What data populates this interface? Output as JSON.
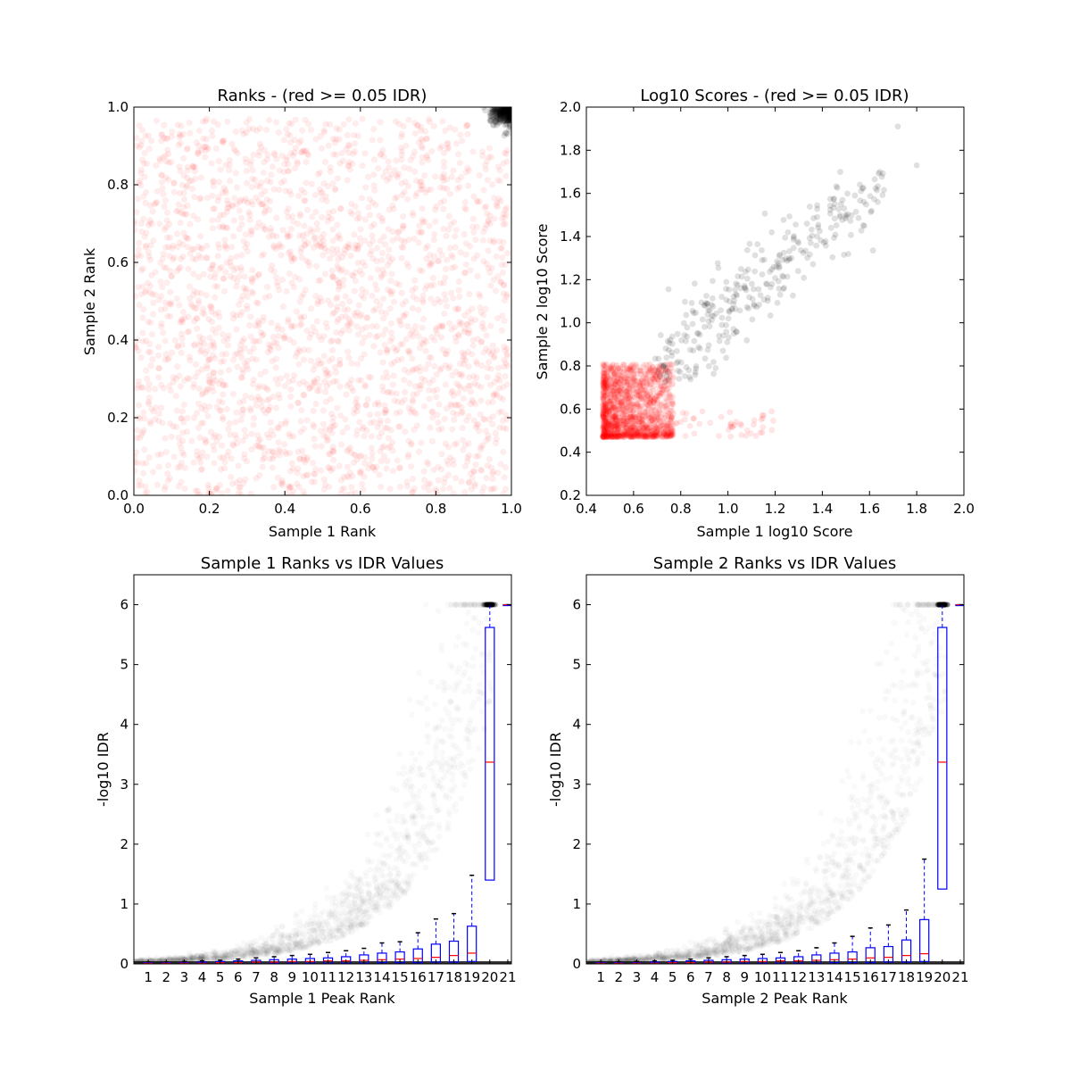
{
  "chart_data": [
    {
      "type": "scatter",
      "title": "Ranks - (red >= 0.05 IDR)",
      "xlabel": "Sample 1 Rank",
      "ylabel": "Sample 2 Rank",
      "xlim": [
        0.0,
        1.0
      ],
      "ylim": [
        0.0,
        1.0
      ],
      "xticks": [
        "0.0",
        "0.2",
        "0.4",
        "0.6",
        "0.8",
        "1.0"
      ],
      "yticks": [
        "0.0",
        "0.2",
        "0.4",
        "0.6",
        "0.8",
        "1.0"
      ],
      "colors": {
        "high_idr": "#ff0000",
        "low_idr": "#000000"
      },
      "series": [
        {
          "color": "#ff0000",
          "x_range": [
            0.0,
            0.99
          ],
          "y_range": [
            0.0,
            0.97
          ],
          "density": "uniform"
        },
        {
          "color": "#000000",
          "x_range": [
            0.86,
            1.0
          ],
          "y_range": [
            0.9,
            1.0
          ],
          "density": "clustered near (1.0, 1.0)"
        }
      ]
    },
    {
      "type": "scatter",
      "title": "Log10 Scores - (red >= 0.05 IDR)",
      "xlabel": "Sample 1 log10 Score",
      "ylabel": "Sample 2 log10 Score",
      "xlim": [
        0.4,
        2.0
      ],
      "ylim": [
        0.2,
        2.0
      ],
      "xticks": [
        "0.4",
        "0.6",
        "0.8",
        "1.0",
        "1.2",
        "1.4",
        "1.6",
        "1.8",
        "2.0"
      ],
      "yticks": [
        "0.2",
        "0.4",
        "0.6",
        "0.8",
        "1.0",
        "1.2",
        "1.4",
        "1.6",
        "1.8",
        "2.0"
      ],
      "series": [
        {
          "color": "#ff0000",
          "x_range": [
            0.47,
            0.8
          ],
          "y_range": [
            0.47,
            0.85
          ],
          "density": "dense cluster"
        },
        {
          "color": "#000000",
          "x_range": [
            0.68,
            1.72
          ],
          "y_range": [
            0.72,
            1.92
          ],
          "density": "diagonal spread"
        }
      ]
    },
    {
      "type": "box",
      "title": "Sample 1 Ranks vs IDR Values",
      "xlabel": "Sample 1 Peak Rank",
      "ylabel": "-log10 IDR",
      "ylim": [
        0,
        6.5
      ],
      "yticks": [
        "0",
        "1",
        "2",
        "3",
        "4",
        "5",
        "6"
      ],
      "categories": [
        "1",
        "2",
        "3",
        "4",
        "5",
        "6",
        "7",
        "8",
        "9",
        "10",
        "11",
        "12",
        "13",
        "14",
        "15",
        "16",
        "17",
        "18",
        "19",
        "20",
        "21"
      ],
      "boxes": [
        {
          "q1": 0.0,
          "median": 0.01,
          "q3": 0.02,
          "whisker_hi": 0.03
        },
        {
          "q1": 0.0,
          "median": 0.01,
          "q3": 0.02,
          "whisker_hi": 0.03
        },
        {
          "q1": 0.0,
          "median": 0.01,
          "q3": 0.02,
          "whisker_hi": 0.04
        },
        {
          "q1": 0.0,
          "median": 0.01,
          "q3": 0.03,
          "whisker_hi": 0.05
        },
        {
          "q1": 0.0,
          "median": 0.02,
          "q3": 0.04,
          "whisker_hi": 0.06
        },
        {
          "q1": 0.0,
          "median": 0.02,
          "q3": 0.05,
          "whisker_hi": 0.08
        },
        {
          "q1": 0.0,
          "median": 0.03,
          "q3": 0.06,
          "whisker_hi": 0.1
        },
        {
          "q1": 0.01,
          "median": 0.03,
          "q3": 0.07,
          "whisker_hi": 0.12
        },
        {
          "q1": 0.01,
          "median": 0.04,
          "q3": 0.08,
          "whisker_hi": 0.14
        },
        {
          "q1": 0.01,
          "median": 0.04,
          "q3": 0.09,
          "whisker_hi": 0.16
        },
        {
          "q1": 0.01,
          "median": 0.05,
          "q3": 0.1,
          "whisker_hi": 0.19
        },
        {
          "q1": 0.01,
          "median": 0.05,
          "q3": 0.12,
          "whisker_hi": 0.22
        },
        {
          "q1": 0.01,
          "median": 0.06,
          "q3": 0.15,
          "whisker_hi": 0.26
        },
        {
          "q1": 0.02,
          "median": 0.07,
          "q3": 0.18,
          "whisker_hi": 0.35
        },
        {
          "q1": 0.02,
          "median": 0.08,
          "q3": 0.2,
          "whisker_hi": 0.37
        },
        {
          "q1": 0.02,
          "median": 0.09,
          "q3": 0.25,
          "whisker_hi": 0.52
        },
        {
          "q1": 0.03,
          "median": 0.11,
          "q3": 0.33,
          "whisker_hi": 0.75
        },
        {
          "q1": 0.03,
          "median": 0.14,
          "q3": 0.38,
          "whisker_hi": 0.84
        },
        {
          "q1": 0.04,
          "median": 0.18,
          "q3": 0.63,
          "whisker_hi": 1.48
        },
        {
          "q1": 1.4,
          "median": 3.37,
          "q3": 5.62,
          "whisker_hi": 6.0
        },
        {
          "q1": 6.0,
          "median": 6.0,
          "q3": 6.0,
          "whisker_hi": 6.0
        }
      ]
    },
    {
      "type": "box",
      "title": "Sample 2 Ranks vs IDR Values",
      "xlabel": "Sample 2 Peak Rank",
      "ylabel": "-log10 IDR",
      "ylim": [
        0,
        6.5
      ],
      "yticks": [
        "0",
        "1",
        "2",
        "3",
        "4",
        "5",
        "6"
      ],
      "categories": [
        "1",
        "2",
        "3",
        "4",
        "5",
        "6",
        "7",
        "8",
        "9",
        "10",
        "11",
        "12",
        "13",
        "14",
        "15",
        "16",
        "17",
        "18",
        "19",
        "20",
        "21"
      ],
      "boxes": [
        {
          "q1": 0.0,
          "median": 0.01,
          "q3": 0.02,
          "whisker_hi": 0.03
        },
        {
          "q1": 0.0,
          "median": 0.01,
          "q3": 0.02,
          "whisker_hi": 0.03
        },
        {
          "q1": 0.0,
          "median": 0.01,
          "q3": 0.02,
          "whisker_hi": 0.04
        },
        {
          "q1": 0.0,
          "median": 0.01,
          "q3": 0.03,
          "whisker_hi": 0.05
        },
        {
          "q1": 0.0,
          "median": 0.02,
          "q3": 0.04,
          "whisker_hi": 0.06
        },
        {
          "q1": 0.0,
          "median": 0.02,
          "q3": 0.05,
          "whisker_hi": 0.08
        },
        {
          "q1": 0.0,
          "median": 0.03,
          "q3": 0.06,
          "whisker_hi": 0.1
        },
        {
          "q1": 0.01,
          "median": 0.03,
          "q3": 0.07,
          "whisker_hi": 0.12
        },
        {
          "q1": 0.01,
          "median": 0.04,
          "q3": 0.08,
          "whisker_hi": 0.14
        },
        {
          "q1": 0.01,
          "median": 0.04,
          "q3": 0.09,
          "whisker_hi": 0.16
        },
        {
          "q1": 0.01,
          "median": 0.05,
          "q3": 0.1,
          "whisker_hi": 0.19
        },
        {
          "q1": 0.01,
          "median": 0.05,
          "q3": 0.12,
          "whisker_hi": 0.22
        },
        {
          "q1": 0.01,
          "median": 0.06,
          "q3": 0.15,
          "whisker_hi": 0.27
        },
        {
          "q1": 0.02,
          "median": 0.07,
          "q3": 0.18,
          "whisker_hi": 0.35
        },
        {
          "q1": 0.02,
          "median": 0.08,
          "q3": 0.2,
          "whisker_hi": 0.46
        },
        {
          "q1": 0.02,
          "median": 0.1,
          "q3": 0.27,
          "whisker_hi": 0.6
        },
        {
          "q1": 0.03,
          "median": 0.11,
          "q3": 0.29,
          "whisker_hi": 0.65
        },
        {
          "q1": 0.03,
          "median": 0.14,
          "q3": 0.4,
          "whisker_hi": 0.9
        },
        {
          "q1": 0.04,
          "median": 0.17,
          "q3": 0.74,
          "whisker_hi": 1.75
        },
        {
          "q1": 1.25,
          "median": 3.37,
          "q3": 5.62,
          "whisker_hi": 6.0
        },
        {
          "q1": 6.0,
          "median": 6.0,
          "q3": 6.0,
          "whisker_hi": 6.0
        }
      ]
    }
  ]
}
